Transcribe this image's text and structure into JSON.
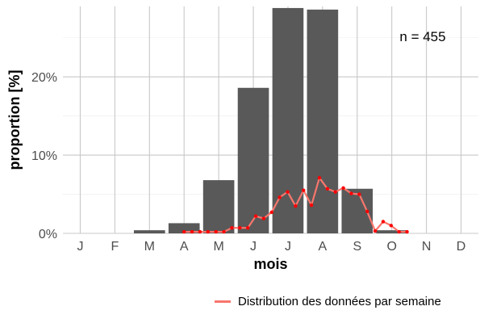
{
  "chart_data": {
    "type": "bar",
    "xlabel": "mois",
    "ylabel": "proportion [%]",
    "categories": [
      "J",
      "F",
      "M",
      "A",
      "M",
      "J",
      "J",
      "A",
      "S",
      "O",
      "N",
      "D"
    ],
    "values": [
      0,
      0,
      0.4,
      1.3,
      6.8,
      18.6,
      28.8,
      28.6,
      5.7,
      0.4,
      0,
      0
    ],
    "ylim": [
      0,
      29
    ],
    "yticks": [
      0,
      10,
      20
    ],
    "ytick_labels": [
      "0%",
      "10%",
      "20%"
    ],
    "bar_color": "#595959",
    "grid": true,
    "annotation": "n = 455",
    "line_series": {
      "name": "Distribution des données par semaine",
      "color": "#f8766d",
      "point_color": "#ff0000",
      "x": [
        3.0,
        3.23,
        3.46,
        3.69,
        3.92,
        4.15,
        4.38,
        4.61,
        4.84,
        5.07,
        5.3,
        5.53,
        5.76,
        5.99,
        6.22,
        6.45,
        6.68,
        6.91,
        7.14,
        7.37,
        7.6,
        7.83,
        8.06,
        8.29,
        8.52,
        8.75,
        8.98,
        9.21,
        9.44
      ],
      "y": [
        0.2,
        0.2,
        0.2,
        0.2,
        0.2,
        0.2,
        0.7,
        0.7,
        0.7,
        2.2,
        1.9,
        2.7,
        4.6,
        5.3,
        3.5,
        5.5,
        3.6,
        7.1,
        5.7,
        5.3,
        5.8,
        5.1,
        5.0,
        2.8,
        0.3,
        1.5,
        1.0,
        0.2,
        0.2
      ]
    },
    "legend_position": "bottom-right"
  }
}
